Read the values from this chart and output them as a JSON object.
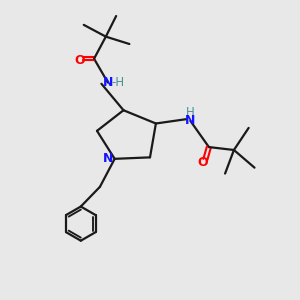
{
  "background_color": "#e8e8e8",
  "bond_color": "#1a1a1a",
  "N_color": "#1414ff",
  "O_color": "#ff0000",
  "H_color": "#4a9090",
  "bond_width": 1.6,
  "figsize": [
    3.0,
    3.0
  ],
  "dpi": 100,
  "xlim": [
    0,
    10
  ],
  "ylim": [
    0,
    10
  ]
}
